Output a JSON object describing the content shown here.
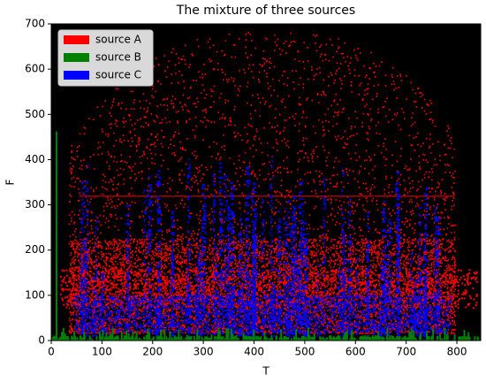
{
  "chart_data": {
    "type": "image",
    "title": "The mixture of three sources",
    "xlabel": "T",
    "ylabel": "F",
    "xlim": [
      0,
      847
    ],
    "ylim": [
      0,
      700
    ],
    "xticks": [
      0,
      100,
      200,
      300,
      400,
      500,
      600,
      700,
      800
    ],
    "yticks": [
      0,
      100,
      200,
      300,
      400,
      500,
      600,
      700
    ],
    "legend": "upper left",
    "series": [
      {
        "name": "source A",
        "color": "#ff0000"
      },
      {
        "name": "source B",
        "color": "#008000"
      },
      {
        "name": "source C",
        "color": "#0000ff"
      }
    ]
  }
}
